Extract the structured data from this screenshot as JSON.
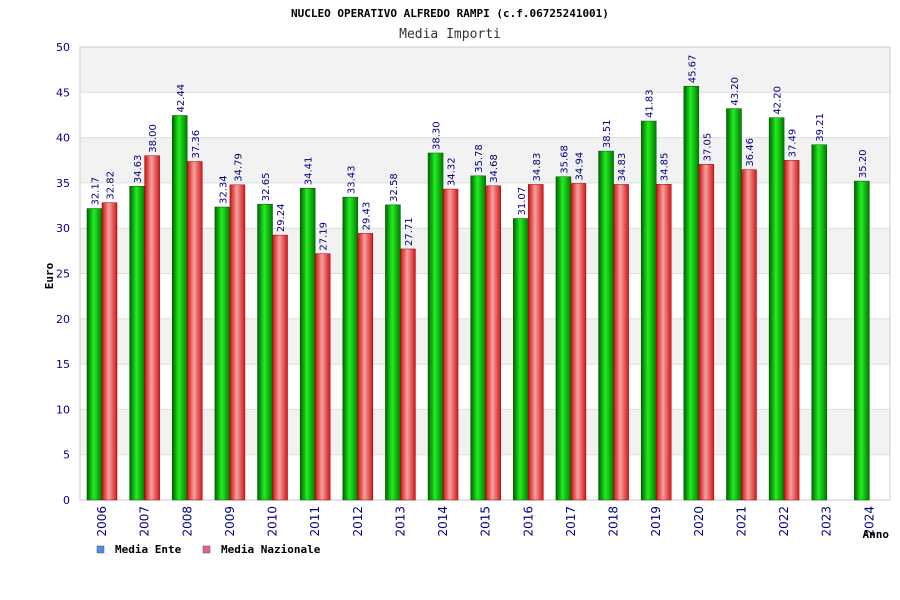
{
  "chart_data": {
    "type": "bar",
    "title": "NUCLEO OPERATIVO ALFREDO RAMPI (c.f.06725241001)",
    "subtitle": "Media Importi",
    "xlabel": "Anno",
    "ylabel": "Euro",
    "ylim": [
      0,
      50
    ],
    "yticks": [
      0,
      5,
      10,
      15,
      20,
      25,
      30,
      35,
      40,
      45,
      50
    ],
    "grid": true,
    "legend_position": "bottom-left",
    "categories": [
      "2006",
      "2007",
      "2008",
      "2009",
      "2010",
      "2011",
      "2012",
      "2013",
      "2014",
      "2015",
      "2016",
      "2017",
      "2018",
      "2019",
      "2020",
      "2021",
      "2022",
      "2023",
      "2024"
    ],
    "series": [
      {
        "name": "Media Ente",
        "color": "#00aa00",
        "legend_color": "#4a90e2",
        "values": [
          32.17,
          34.63,
          42.44,
          32.34,
          32.65,
          34.41,
          33.43,
          32.58,
          38.3,
          35.78,
          31.07,
          35.68,
          38.51,
          41.83,
          45.67,
          43.2,
          42.2,
          39.21,
          35.2
        ],
        "labels": [
          "32.17",
          "34.63",
          "42.44",
          "32.34",
          "32.65",
          "34.41",
          "33.43",
          "32.58",
          "38.30",
          "35.78",
          "31.07",
          "35.68",
          "38.51",
          "41.83",
          "45.67",
          "43.20",
          "42.20",
          "39.21",
          "35.20"
        ]
      },
      {
        "name": "Media Nazionale",
        "color": "#e02020",
        "legend_color": "#e0609a",
        "values": [
          32.82,
          38.0,
          37.36,
          34.79,
          29.24,
          27.19,
          29.43,
          27.71,
          34.32,
          34.68,
          34.83,
          34.94,
          34.83,
          34.85,
          37.05,
          36.46,
          37.49,
          null,
          null
        ],
        "labels": [
          "32.82",
          "38.00",
          "37.36",
          "34.79",
          "29.24",
          "27.19",
          "29.43",
          "27.71",
          "34.32",
          "34.68",
          "34.83",
          "34.94",
          "34.83",
          "34.85",
          "37.05",
          "36.46",
          "37.49",
          "",
          ""
        ]
      }
    ]
  }
}
